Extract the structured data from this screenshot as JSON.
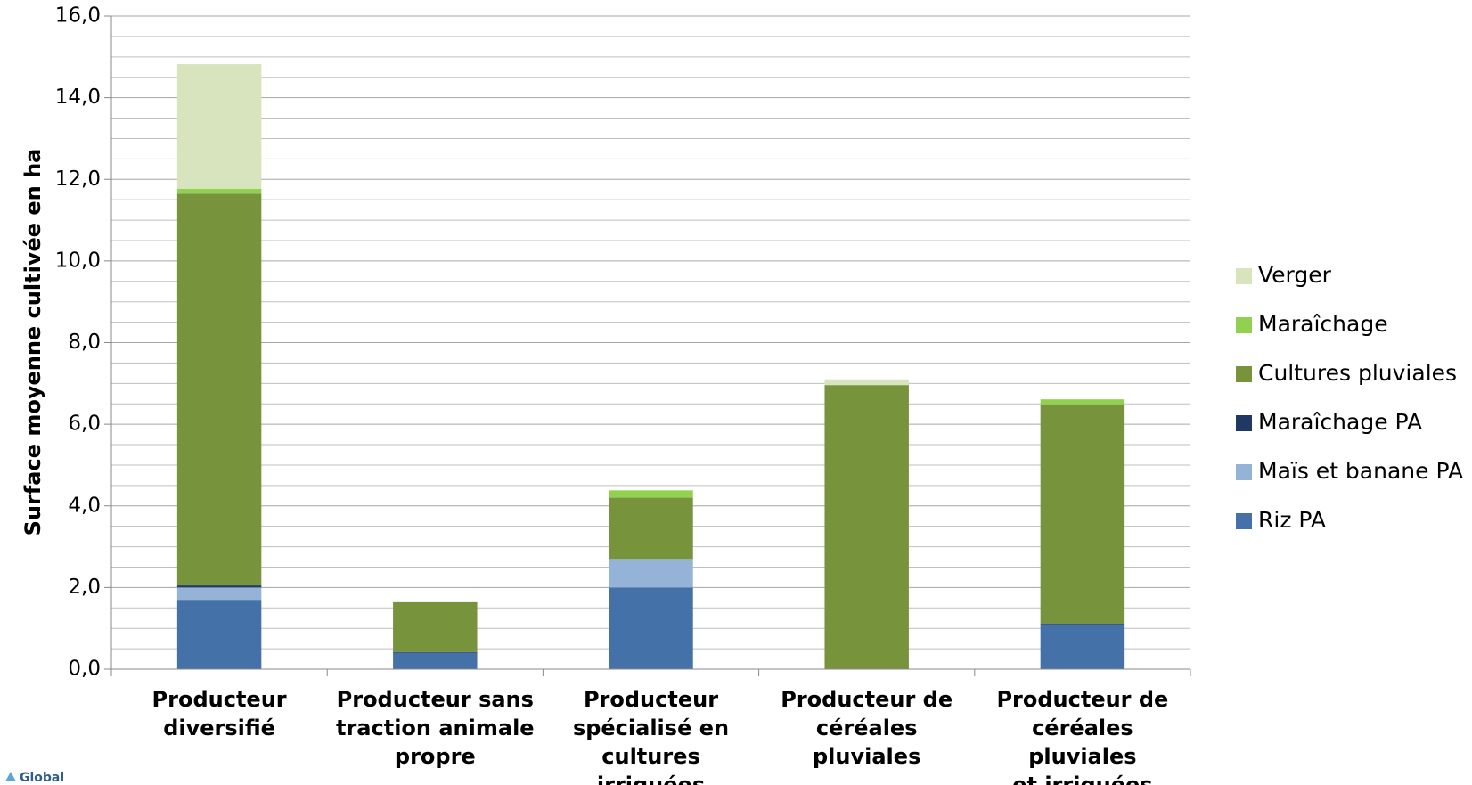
{
  "chart_data": {
    "type": "stacked_bar",
    "y_label": "Surface moyenne cultivée en ha",
    "logo_text": "Global",
    "categories": [
      "Producteur\ndiversifié",
      "Producteur sans\ntraction animale\npropre",
      "Producteur\nspécialisé en\ncultures irriguées",
      "Producteur de\ncéréales pluviales",
      "Producteur de\ncéréales pluviales\net irriguées"
    ],
    "series": [
      {
        "name": "Riz PA",
        "color": "#4472a8",
        "values": [
          1.7,
          0.4,
          2.0,
          0,
          1.1
        ]
      },
      {
        "name": "Maïs et banane PA",
        "color": "#95b3d7",
        "values": [
          0.3,
          0,
          0.7,
          0,
          0
        ]
      },
      {
        "name": "Maraîchage PA",
        "color": "#1f3864",
        "values": [
          0.05,
          0.02,
          0,
          0,
          0.02
        ]
      },
      {
        "name": "Cultures pluviales",
        "color": "#77933c",
        "values": [
          9.6,
          1.22,
          1.5,
          6.96,
          5.37
        ]
      },
      {
        "name": "Maraîchage",
        "color": "#92d050",
        "values": [
          0.12,
          0,
          0.18,
          0,
          0.12
        ]
      },
      {
        "name": "Verger",
        "color": "#d7e4bd",
        "values": [
          3.05,
          0,
          0,
          0.14,
          0
        ]
      }
    ],
    "ylim": [
      0,
      16
    ],
    "yticks": [
      {
        "value": 0,
        "label": "0,0"
      },
      {
        "value": 2,
        "label": "2,0"
      },
      {
        "value": 4,
        "label": "4,0"
      },
      {
        "value": 6,
        "label": "6,0"
      },
      {
        "value": 8,
        "label": "8,0"
      },
      {
        "value": 10,
        "label": "10,0"
      },
      {
        "value": 12,
        "label": "12,0"
      },
      {
        "value": 14,
        "label": "14,0"
      },
      {
        "value": 16,
        "label": "16,0"
      }
    ],
    "minor_yticks": [
      0.5,
      1,
      1.5,
      2.5,
      3,
      3.5,
      4.5,
      5,
      5.5,
      6.5,
      7,
      7.5,
      8.5,
      9,
      9.5,
      10.5,
      11,
      11.5,
      12.5,
      13,
      13.5,
      14.5,
      15,
      15.5
    ],
    "grid": true,
    "legend": "right"
  }
}
